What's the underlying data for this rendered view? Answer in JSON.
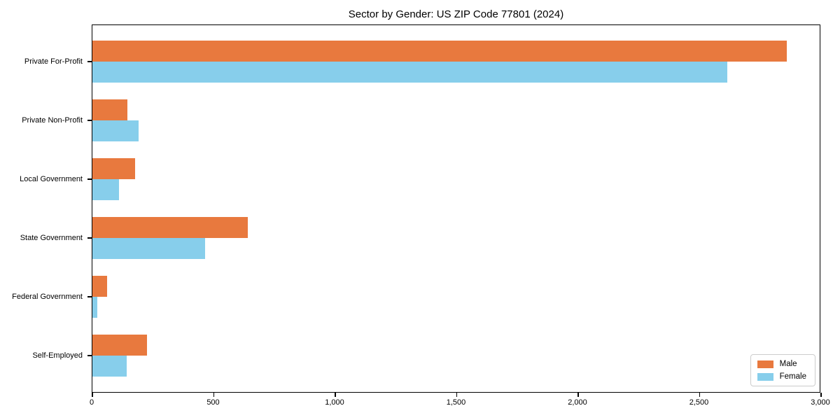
{
  "chart_data": {
    "type": "bar",
    "orientation": "horizontal",
    "title": "Sector by Gender: US ZIP Code 77801 (2024)",
    "categories": [
      "Private For-Profit",
      "Private Non-Profit",
      "Local Government",
      "State Government",
      "Federal Government",
      "Self-Employed"
    ],
    "series": [
      {
        "name": "Male",
        "color": "#E8793E",
        "values": [
          2860,
          145,
          175,
          640,
          60,
          225
        ]
      },
      {
        "name": "Female",
        "color": "#87CEEB",
        "values": [
          2615,
          190,
          110,
          465,
          20,
          140
        ]
      }
    ],
    "xlabel": "",
    "ylabel": "",
    "xlim": [
      0,
      3000
    ],
    "x_ticks": [
      {
        "value": 0,
        "label": "0"
      },
      {
        "value": 500,
        "label": "500"
      },
      {
        "value": 1000,
        "label": "1,000"
      },
      {
        "value": 1500,
        "label": "1,500"
      },
      {
        "value": 2000,
        "label": "2,000"
      },
      {
        "value": 2500,
        "label": "2,500"
      },
      {
        "value": 3000,
        "label": "3,000"
      }
    ],
    "grid": false,
    "legend": {
      "position": "lower-right"
    }
  }
}
